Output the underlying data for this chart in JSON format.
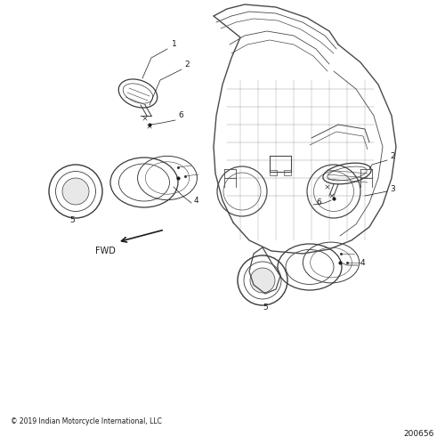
{
  "background_color": "#ffffff",
  "copyright_text": "© 2019 Indian Motorcycle International, LLC",
  "part_number": "200656",
  "fwd_label": "FWD",
  "line_color": "#3a3a3a",
  "text_color": "#1a1a1a",
  "font_size_labels": 6.5,
  "font_size_copyright": 5.5,
  "font_size_part": 6.5,
  "font_size_fwd": 7.0,
  "fairing_color": "#4a4a4a",
  "detail_color": "#555555"
}
